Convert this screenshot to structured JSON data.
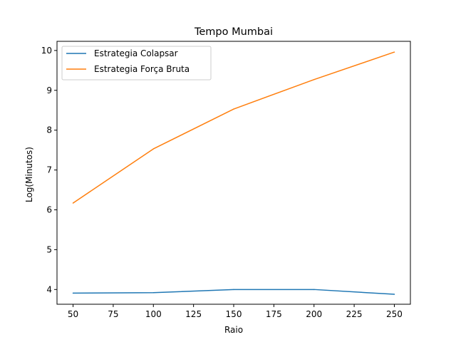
{
  "chart_data": {
    "type": "line",
    "title": "Tempo Mumbai",
    "xlabel": "Raio",
    "ylabel": "Log(Minutos)",
    "x": [
      50,
      100,
      150,
      200,
      250
    ],
    "series": [
      {
        "name": "Estrategia Colapsar",
        "color": "#1f77b4",
        "values": [
          3.91,
          3.92,
          4.0,
          4.0,
          3.88
        ]
      },
      {
        "name": "Estrategia Força Bruta",
        "color": "#ff7f0e",
        "values": [
          6.17,
          7.53,
          8.53,
          9.27,
          9.96
        ]
      }
    ],
    "xticks": [
      "50",
      "75",
      "100",
      "125",
      "150",
      "175",
      "200",
      "225",
      "250"
    ],
    "yticks": [
      "4",
      "5",
      "6",
      "7",
      "8",
      "9",
      "10"
    ],
    "xlim": [
      40,
      260
    ],
    "ylim": [
      3.63,
      10.23
    ],
    "grid": false,
    "legend_position": "top-left"
  }
}
